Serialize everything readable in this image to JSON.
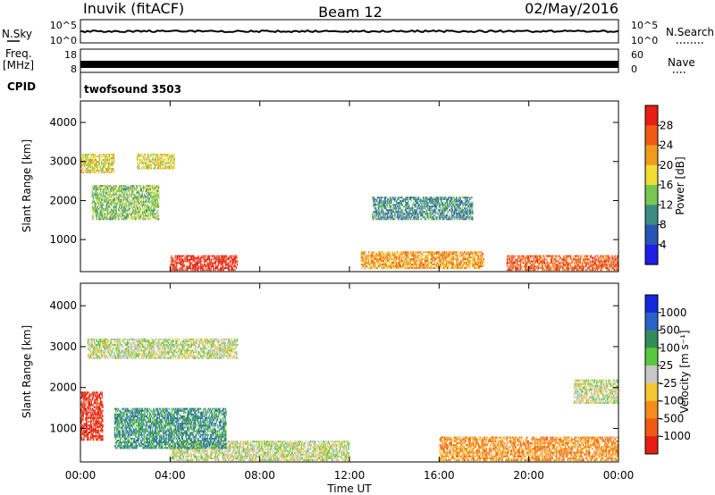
{
  "header": {
    "station": "Inuvik (fitACF)",
    "beam": "Beam 12",
    "date": "02/May/2016"
  },
  "top_panels": {
    "nsky_label": "N.Sky",
    "nsky_ticks": [
      "10^5",
      "10^0"
    ],
    "nsearch_label": "N.Search",
    "nsearch_ticks": [
      "10^5",
      "10^0"
    ],
    "freq_label": "Freq.",
    "freq_unit": "[MHz]",
    "freq_ticks": [
      "18",
      "8"
    ],
    "nave_label": "Nave",
    "nave_ticks": [
      "60",
      "0"
    ],
    "cpid_label": "CPID",
    "cpid_text": "twofsound 3503"
  },
  "chart_data": [
    {
      "type": "heatmap",
      "panel": "power",
      "ylabel": "Slant Range [km]",
      "y_ticks": [
        1000,
        2000,
        3000,
        4000
      ],
      "ylim": [
        180,
        4550
      ],
      "x_tick_labels": [
        "00:00",
        "04:00",
        "08:00",
        "12:00",
        "16:00",
        "20:00",
        "00:00"
      ],
      "xlim_hours": [
        0,
        24
      ],
      "colorbar": {
        "label": "Power [dB]",
        "tick_labels": [
          "4",
          "8",
          "12",
          "16",
          "20",
          "24",
          "28"
        ],
        "colors": [
          "#1e1ee6",
          "#2855b4",
          "#3c8c82",
          "#78c850",
          "#f0dc32",
          "#f09b1e",
          "#f05a14",
          "#e61e14"
        ]
      },
      "echo_regions": [
        {
          "t": [
            4,
            7
          ],
          "r": [
            200,
            600
          ],
          "level": 7
        },
        {
          "t": [
            0,
            1.5
          ],
          "r": [
            2700,
            3200
          ],
          "level": 4
        },
        {
          "t": [
            2.5,
            4.2
          ],
          "r": [
            2800,
            3200
          ],
          "level": 4
        },
        {
          "t": [
            19,
            24
          ],
          "r": [
            200,
            600
          ],
          "level": 6
        },
        {
          "t": [
            12.5,
            18
          ],
          "r": [
            250,
            700
          ],
          "level": 5
        },
        {
          "t": [
            0.5,
            3.5
          ],
          "r": [
            1500,
            2400
          ],
          "level": 3
        },
        {
          "t": [
            13,
            17.5
          ],
          "r": [
            1500,
            2100
          ],
          "level": 2
        }
      ]
    },
    {
      "type": "heatmap",
      "panel": "velocity",
      "ylabel": "Slant Range [km]",
      "y_ticks": [
        1000,
        2000,
        3000,
        4000
      ],
      "ylim": [
        180,
        4550
      ],
      "x_tick_labels": [
        "00:00",
        "04:00",
        "08:00",
        "12:00",
        "16:00",
        "20:00",
        "00:00"
      ],
      "xlim_hours": [
        0,
        24
      ],
      "xlabel": "Time UT",
      "colorbar": {
        "label": "Velocity [m s⁻¹]",
        "tick_labels": [
          "1000",
          "500",
          "100",
          "25",
          "-25",
          "-100",
          "-500",
          "-1000"
        ],
        "colors": [
          "#1428dc",
          "#2864c8",
          "#328c5a",
          "#5ac83c",
          "#c8c8c8",
          "#f5c832",
          "#f58c1e",
          "#f05a14",
          "#e61e14"
        ]
      },
      "echo_regions": [
        {
          "t": [
            0,
            1
          ],
          "r": [
            700,
            1900
          ],
          "level": 8
        },
        {
          "t": [
            0.3,
            7
          ],
          "r": [
            2700,
            3200
          ],
          "level": 4
        },
        {
          "t": [
            4,
            12
          ],
          "r": [
            200,
            700
          ],
          "level": 4
        },
        {
          "t": [
            16,
            24
          ],
          "r": [
            200,
            800
          ],
          "level": 6
        },
        {
          "t": [
            1.5,
            6.5
          ],
          "r": [
            500,
            1500
          ],
          "level": 2
        },
        {
          "t": [
            22,
            24
          ],
          "r": [
            1600,
            2200
          ],
          "level": 4
        }
      ]
    }
  ]
}
